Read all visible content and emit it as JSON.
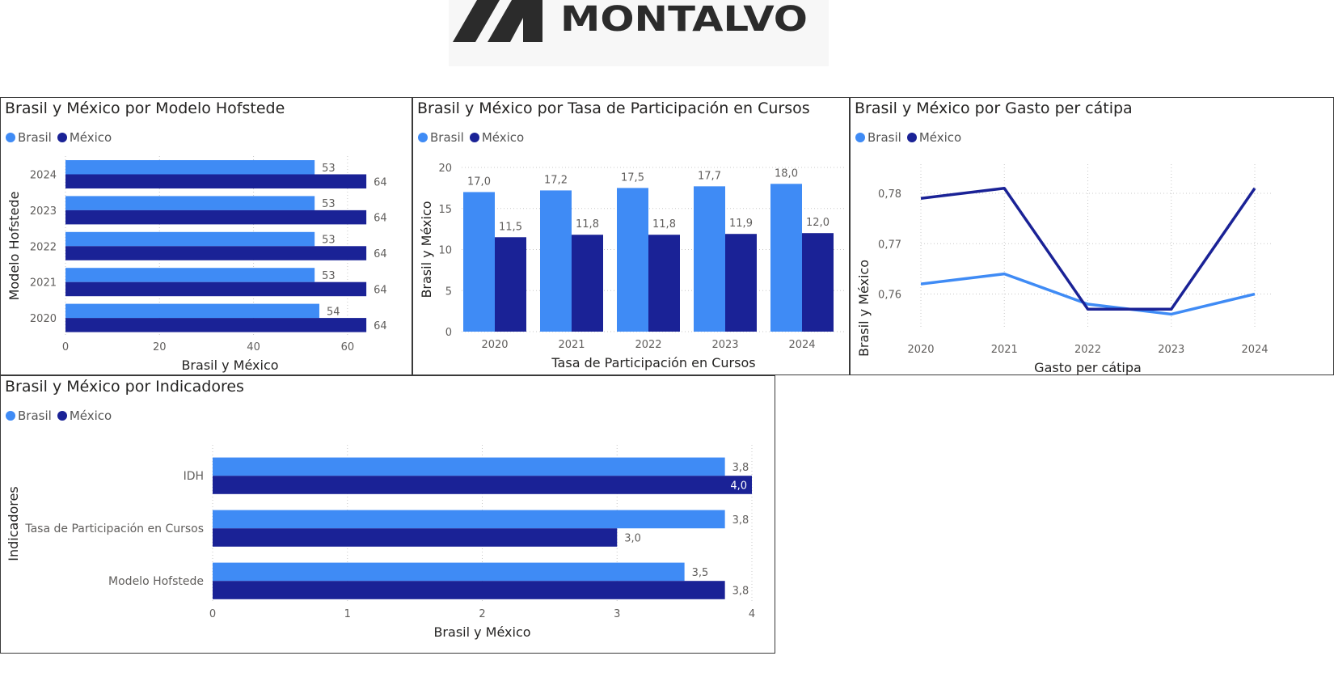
{
  "logo": {
    "text": "MONTALVO"
  },
  "colors": {
    "brasil": "#3f8bf5",
    "mexico": "#1a2296",
    "grid": "#c8c8c8",
    "axis_text": "#605e5c",
    "title_text": "#252423"
  },
  "legend": {
    "brasil": "Brasil",
    "mexico": "México"
  },
  "chart_data": [
    {
      "id": "hofstede",
      "type": "bar",
      "orientation": "horizontal",
      "title": "Brasil y México por Modelo Hofstede",
      "xlabel": "Brasil y México",
      "ylabel": "Modelo Hofstede",
      "categories": [
        "2024",
        "2023",
        "2022",
        "2021",
        "2020"
      ],
      "series": [
        {
          "name": "Brasil",
          "values": [
            53,
            53,
            53,
            53,
            54
          ],
          "labels": [
            "53",
            "53",
            "53",
            "53",
            "54"
          ]
        },
        {
          "name": "México",
          "values": [
            64,
            64,
            64,
            64,
            64
          ],
          "labels": [
            "64",
            "64",
            "64",
            "64",
            "64"
          ]
        }
      ],
      "xlim": [
        0,
        70
      ],
      "xticks": [
        "0",
        "20",
        "40",
        "60"
      ],
      "xtick_values": [
        0,
        20,
        40,
        60
      ],
      "grid": true,
      "legend_position": "top-left"
    },
    {
      "id": "cursos",
      "type": "bar",
      "orientation": "vertical",
      "title": "Brasil y México por Tasa de Participación en Cursos",
      "xlabel": "Tasa de Participación en Cursos",
      "ylabel": "Brasil y México",
      "categories": [
        "2020",
        "2021",
        "2022",
        "2023",
        "2024"
      ],
      "series": [
        {
          "name": "Brasil",
          "values": [
            17.0,
            17.2,
            17.5,
            17.7,
            18.0
          ],
          "labels": [
            "17,0",
            "17,2",
            "17,5",
            "17,7",
            "18,0"
          ]
        },
        {
          "name": "México",
          "values": [
            11.5,
            11.8,
            11.8,
            11.9,
            12.0
          ],
          "labels": [
            "11,5",
            "11,8",
            "11,8",
            "11,9",
            "12,0"
          ]
        }
      ],
      "ylim": [
        0,
        20
      ],
      "yticks": [
        "0",
        "5",
        "10",
        "15",
        "20"
      ],
      "ytick_values": [
        0,
        5,
        10,
        15,
        20
      ],
      "grid": true,
      "legend_position": "top-left"
    },
    {
      "id": "gasto",
      "type": "line",
      "title": "Brasil y México por Gasto per cátipa",
      "xlabel": "Gasto per cátipa",
      "ylabel": "Brasil y México",
      "x": [
        "2020",
        "2021",
        "2022",
        "2023",
        "2024"
      ],
      "series": [
        {
          "name": "Brasil",
          "values": [
            0.762,
            0.764,
            0.758,
            0.756,
            0.76
          ]
        },
        {
          "name": "México",
          "values": [
            0.779,
            0.781,
            0.757,
            0.757,
            0.781
          ]
        }
      ],
      "ylim": [
        0.7535,
        0.7845
      ],
      "yticks": [
        "0,76",
        "0,77",
        "0,78"
      ],
      "ytick_values": [
        0.76,
        0.77,
        0.78
      ],
      "grid": true,
      "legend_position": "top-left"
    },
    {
      "id": "indicadores",
      "type": "bar",
      "orientation": "horizontal",
      "title": "Brasil y México por Indicadores",
      "xlabel": "Brasil y México",
      "ylabel": "Indicadores",
      "categories": [
        "IDH",
        "Tasa de Participación en Cursos",
        "Modelo Hofstede"
      ],
      "series": [
        {
          "name": "Brasil",
          "values": [
            3.8,
            3.8,
            3.5
          ],
          "labels": [
            "3,8",
            "3,8",
            "3,5"
          ]
        },
        {
          "name": "México",
          "values": [
            4.0,
            3.0,
            3.8
          ],
          "labels": [
            "4,0",
            "3,0",
            "3,8"
          ]
        }
      ],
      "xlim": [
        0,
        4
      ],
      "xticks": [
        "0",
        "1",
        "2",
        "3",
        "4"
      ],
      "xtick_values": [
        0,
        1,
        2,
        3,
        4
      ],
      "grid": true,
      "legend_position": "top-left"
    }
  ]
}
